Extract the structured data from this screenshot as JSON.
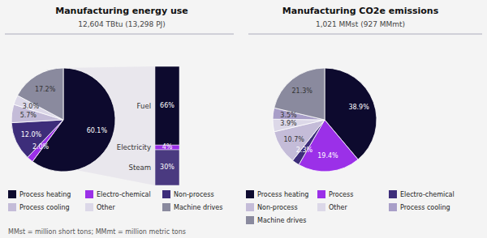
{
  "chart_data": [
    {
      "type": "pie",
      "title": "Manufacturing energy use",
      "subtitle": "12,604 TBtu (13,298 PJ)",
      "categories": [
        "Process heating",
        "Electro-chemical",
        "Non-process",
        "Process cooling",
        "Other",
        "Machine drives"
      ],
      "values": [
        60.1,
        2.0,
        12.0,
        5.7,
        3.0,
        17.2
      ],
      "colors": [
        "#0d0a2e",
        "#9b30e8",
        "#3d2d7a",
        "#c4bcd8",
        "#dcd8e8",
        "#8a8a9e"
      ],
      "value_labels": [
        "60.1%",
        "2.0%",
        "12.0%",
        "5.7%",
        "3.0%",
        "17.2%"
      ],
      "data_labels": true,
      "legend": "bottom",
      "annotations": [
        "MMst = million short tons; MMmt = million metric tons"
      ]
    },
    {
      "type": "bar",
      "stacked": true,
      "categories": [
        null
      ],
      "series": [
        {
          "name": "Steam",
          "color": "#4a3a80",
          "values": [
            30
          ],
          "value_labels": [
            "30%"
          ]
        },
        {
          "name": "Electricity",
          "color": "#9b30e8",
          "values": [
            4
          ],
          "value_labels": [
            "4%"
          ]
        },
        {
          "name": "Fuel",
          "color": "#0d0a2e",
          "values": [
            66
          ],
          "value_labels": [
            "66%"
          ]
        }
      ],
      "ylim": [
        0,
        100
      ],
      "tick_labels": false,
      "data_labels": true
    },
    {
      "type": "pie",
      "title": "Manufacturing CO2e emissions",
      "subtitle": "1,021 MMst (927 MMmt)",
      "categories": [
        "Process heating",
        "Process",
        "Electro-chemical",
        "Non-process",
        "Other",
        "Process cooling",
        "Machine drives"
      ],
      "values": [
        38.9,
        19.4,
        2.3,
        10.7,
        3.9,
        3.5,
        21.3
      ],
      "colors": [
        "#0d0a2e",
        "#9b30e8",
        "#3d2d7a",
        "#c4bcd8",
        "#dcd8e8",
        "#a89ec8",
        "#8a8a9e"
      ],
      "value_labels": [
        "38.9%",
        "19.4%",
        "2.3%",
        "10.7%",
        "3.9%",
        "3.5%",
        "21.3%"
      ],
      "data_labels": true,
      "legend": "bottom"
    }
  ]
}
